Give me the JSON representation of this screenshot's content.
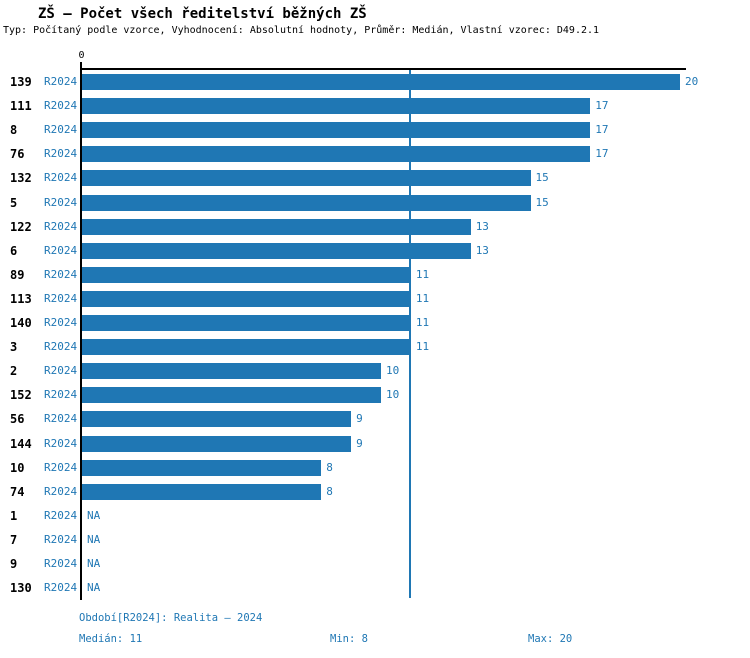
{
  "title": "ZŠ – Počet všech ředitelství běžných ZŠ",
  "subtitle": "Typ: Počítaný podle vzorce, Vyhodnocení: Absolutní hodnoty, Průměr: Medián, Vlastní vzorec: D49.2.1",
  "axis": {
    "zero_label": "0"
  },
  "rows": [
    {
      "id": "139",
      "period": "R2024",
      "value": 20,
      "value_label": "20"
    },
    {
      "id": "111",
      "period": "R2024",
      "value": 17,
      "value_label": "17"
    },
    {
      "id": "8",
      "period": "R2024",
      "value": 17,
      "value_label": "17"
    },
    {
      "id": "76",
      "period": "R2024",
      "value": 17,
      "value_label": "17"
    },
    {
      "id": "132",
      "period": "R2024",
      "value": 15,
      "value_label": "15"
    },
    {
      "id": "5",
      "period": "R2024",
      "value": 15,
      "value_label": "15"
    },
    {
      "id": "122",
      "period": "R2024",
      "value": 13,
      "value_label": "13"
    },
    {
      "id": "6",
      "period": "R2024",
      "value": 13,
      "value_label": "13"
    },
    {
      "id": "89",
      "period": "R2024",
      "value": 11,
      "value_label": "11"
    },
    {
      "id": "113",
      "period": "R2024",
      "value": 11,
      "value_label": "11"
    },
    {
      "id": "140",
      "period": "R2024",
      "value": 11,
      "value_label": "11"
    },
    {
      "id": "3",
      "period": "R2024",
      "value": 11,
      "value_label": "11"
    },
    {
      "id": "2",
      "period": "R2024",
      "value": 10,
      "value_label": "10"
    },
    {
      "id": "152",
      "period": "R2024",
      "value": 10,
      "value_label": "10"
    },
    {
      "id": "56",
      "period": "R2024",
      "value": 9,
      "value_label": "9"
    },
    {
      "id": "144",
      "period": "R2024",
      "value": 9,
      "value_label": "9"
    },
    {
      "id": "10",
      "period": "R2024",
      "value": 8,
      "value_label": "8"
    },
    {
      "id": "74",
      "period": "R2024",
      "value": 8,
      "value_label": "8"
    },
    {
      "id": "1",
      "period": "R2024",
      "value": null,
      "value_label": "NA"
    },
    {
      "id": "7",
      "period": "R2024",
      "value": null,
      "value_label": "NA"
    },
    {
      "id": "9",
      "period": "R2024",
      "value": null,
      "value_label": "NA"
    },
    {
      "id": "130",
      "period": "R2024",
      "value": null,
      "value_label": "NA"
    }
  ],
  "footer": {
    "period_line": "Období[R2024]: Realita – 2024",
    "median": "Medián: 11",
    "min": "Min: 8",
    "max": "Max: 20"
  },
  "colors": {
    "bar": "#1f77b4",
    "blue_text": "#1f77b4",
    "median_line": "#1f77b4",
    "axis": "#000000"
  },
  "chart_data": {
    "type": "bar",
    "orientation": "horizontal",
    "title": "ZŠ – Počet všech ředitelství běžných ZŠ",
    "subtitle": "Typ: Počítaný podle vzorce, Vyhodnocení: Absolutní hodnoty, Průměr: Medián, Vlastní vzorec: D49.2.1",
    "categories": [
      "139",
      "111",
      "8",
      "76",
      "132",
      "5",
      "122",
      "6",
      "89",
      "113",
      "140",
      "3",
      "2",
      "152",
      "56",
      "144",
      "10",
      "74",
      "1",
      "7",
      "9",
      "130"
    ],
    "series": [
      {
        "name": "R2024",
        "values": [
          20,
          17,
          17,
          17,
          15,
          15,
          13,
          13,
          11,
          11,
          11,
          11,
          10,
          10,
          9,
          9,
          8,
          8,
          null,
          null,
          null,
          null
        ]
      }
    ],
    "na_label": "NA",
    "xlim": [
      0,
      20.2
    ],
    "xticks": [
      0
    ],
    "grid": false,
    "reference_lines": [
      {
        "label": "Medián",
        "value": 11
      }
    ],
    "stats": {
      "median": 11,
      "min": 8,
      "max": 20
    },
    "period": "Realita – 2024"
  }
}
